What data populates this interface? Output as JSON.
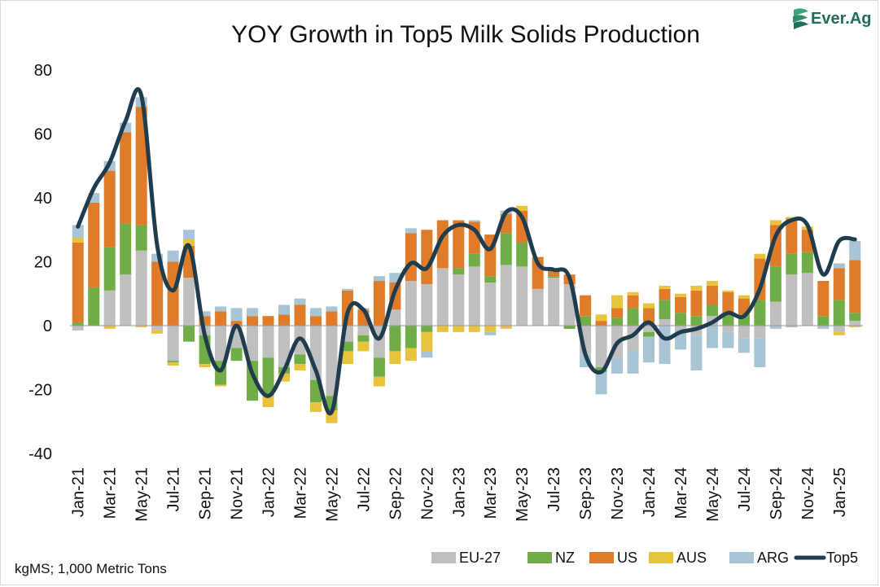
{
  "brand": {
    "logo_text": "Ever.Ag",
    "logo_icon": "ever-ag-logo-icon",
    "color": "#1f6e5b"
  },
  "footnote": "kgMS; 1,000 Metric Tons",
  "chart_data": {
    "type": "bar",
    "stacked": true,
    "title": "YOY Growth in Top5 Milk Solids Production",
    "xlabel": "",
    "ylabel": "",
    "ylim": [
      -40,
      80
    ],
    "yticks": [
      -40,
      -20,
      0,
      20,
      40,
      60,
      80
    ],
    "grid": false,
    "legend_position": "bottom-right",
    "xtick_labels": [
      "Jan-21",
      "Mar-21",
      "May-21",
      "Jul-21",
      "Sep-21",
      "Nov-21",
      "Jan-22",
      "Mar-22",
      "May-22",
      "Jul-22",
      "Sep-22",
      "Nov-22",
      "Jan-23",
      "Mar-23",
      "May-23",
      "Jul-23",
      "Sep-23",
      "Nov-23",
      "Jan-24",
      "Mar-24",
      "May-24",
      "Jul-24",
      "Sep-24",
      "Nov-24",
      "Jan-25"
    ],
    "categories": [
      "Jan-21",
      "Feb-21",
      "Mar-21",
      "Apr-21",
      "May-21",
      "Jun-21",
      "Jul-21",
      "Aug-21",
      "Sep-21",
      "Oct-21",
      "Nov-21",
      "Dec-21",
      "Jan-22",
      "Feb-22",
      "Mar-22",
      "Apr-22",
      "May-22",
      "Jun-22",
      "Jul-22",
      "Aug-22",
      "Sep-22",
      "Oct-22",
      "Nov-22",
      "Dec-22",
      "Jan-23",
      "Feb-23",
      "Mar-23",
      "Apr-23",
      "May-23",
      "Jun-23",
      "Jul-23",
      "Aug-23",
      "Sep-23",
      "Oct-23",
      "Nov-23",
      "Dec-23",
      "Jan-24",
      "Feb-24",
      "Mar-24",
      "Apr-24",
      "May-24",
      "Jun-24",
      "Jul-24",
      "Aug-24",
      "Sep-24",
      "Oct-24",
      "Nov-24",
      "Dec-24",
      "Jan-25",
      "Feb-25"
    ],
    "series": [
      {
        "name": "EU-27",
        "color": "#bfbfbf",
        "values": [
          -1.5,
          0,
          11,
          16,
          23.5,
          -1.5,
          -11,
          15,
          -3,
          -11,
          -7,
          -11,
          -10,
          -13,
          -9,
          -17,
          -22,
          -5,
          -3,
          -10,
          5,
          14,
          13,
          18,
          16,
          18.5,
          13.5,
          19,
          18.5,
          11.5,
          15,
          13,
          -9,
          -13,
          -10,
          -8,
          -2,
          2,
          -1,
          -3,
          3,
          -2,
          -4,
          -4,
          7.5,
          16,
          16.5,
          0,
          -2,
          1.5
        ]
      },
      {
        "name": "NZ",
        "color": "#70ad47",
        "values": [
          1,
          12,
          13.5,
          16,
          8,
          0,
          -0.5,
          -5,
          -9,
          -7.5,
          -4,
          -12.5,
          -12,
          -2,
          -3,
          -7,
          -4.5,
          -3,
          -2,
          -6,
          -8,
          -7,
          -2,
          0,
          2,
          4,
          2,
          10,
          7.5,
          0,
          0.5,
          -1,
          3,
          -1.5,
          2.5,
          5.5,
          -1.5,
          6,
          4,
          3,
          3.5,
          4.5,
          3.5,
          8,
          11,
          6.5,
          6.5,
          3,
          8,
          2.5
        ]
      },
      {
        "name": "US",
        "color": "#e07b29",
        "values": [
          25,
          26.5,
          24,
          28.5,
          37,
          20,
          20,
          10,
          3,
          4.5,
          1.5,
          3,
          3,
          3.5,
          6.5,
          3,
          4.5,
          11,
          5,
          14,
          8.5,
          15,
          17,
          15,
          15,
          10,
          13,
          6,
          10,
          10,
          2,
          3,
          6.5,
          1.5,
          3,
          4,
          5.5,
          3.5,
          5,
          8,
          6,
          6,
          5,
          13,
          13,
          11,
          7,
          11,
          10,
          16.5
        ]
      },
      {
        "name": "AUS",
        "color": "#e8c33c",
        "values": [
          1.5,
          0,
          -1,
          0,
          -0.5,
          -1,
          -1,
          2,
          -1,
          -0.5,
          0,
          0,
          -3.5,
          -2.5,
          -2,
          -3,
          -4,
          -4,
          -3,
          -3,
          -4,
          -4,
          -6,
          -2,
          -2,
          -2,
          -2,
          -1,
          1.5,
          0,
          0,
          0,
          0,
          2,
          4,
          1,
          1.5,
          1,
          1,
          1.5,
          1.5,
          0.5,
          1,
          1.5,
          1.5,
          0.5,
          1,
          0,
          -1,
          -0.5
        ]
      },
      {
        "name": "ARG",
        "color": "#a9c4d4",
        "values": [
          4,
          3,
          3,
          3,
          3,
          2.5,
          3.5,
          3,
          1.5,
          1.5,
          4,
          2.5,
          0,
          3,
          2,
          2.5,
          1.5,
          0.5,
          0.5,
          1.5,
          3,
          1.5,
          -2,
          0,
          0,
          0.5,
          -1,
          1,
          0,
          0,
          0,
          0,
          -4,
          -7,
          -5,
          -7,
          -8,
          -12,
          -6.5,
          -11,
          -7,
          -5,
          -4.5,
          -9,
          -1,
          -0.5,
          0,
          -1,
          1.5,
          6
        ]
      }
    ],
    "line": {
      "name": "Top5",
      "color": "#1f3d4e",
      "values": [
        31,
        43,
        51,
        64,
        72,
        25,
        11,
        25,
        -3,
        -14,
        0,
        -15,
        -22,
        -14,
        -4,
        -14,
        -27,
        4,
        5,
        -4,
        11,
        19.5,
        18,
        28,
        31.5,
        30,
        24,
        35.5,
        34,
        19.5,
        17.5,
        15,
        -9,
        -14.5,
        -5.5,
        -3,
        1,
        -4,
        -2,
        -1,
        1,
        4,
        3,
        11.5,
        28,
        33,
        31.5,
        16,
        26.5,
        27
      ]
    }
  }
}
